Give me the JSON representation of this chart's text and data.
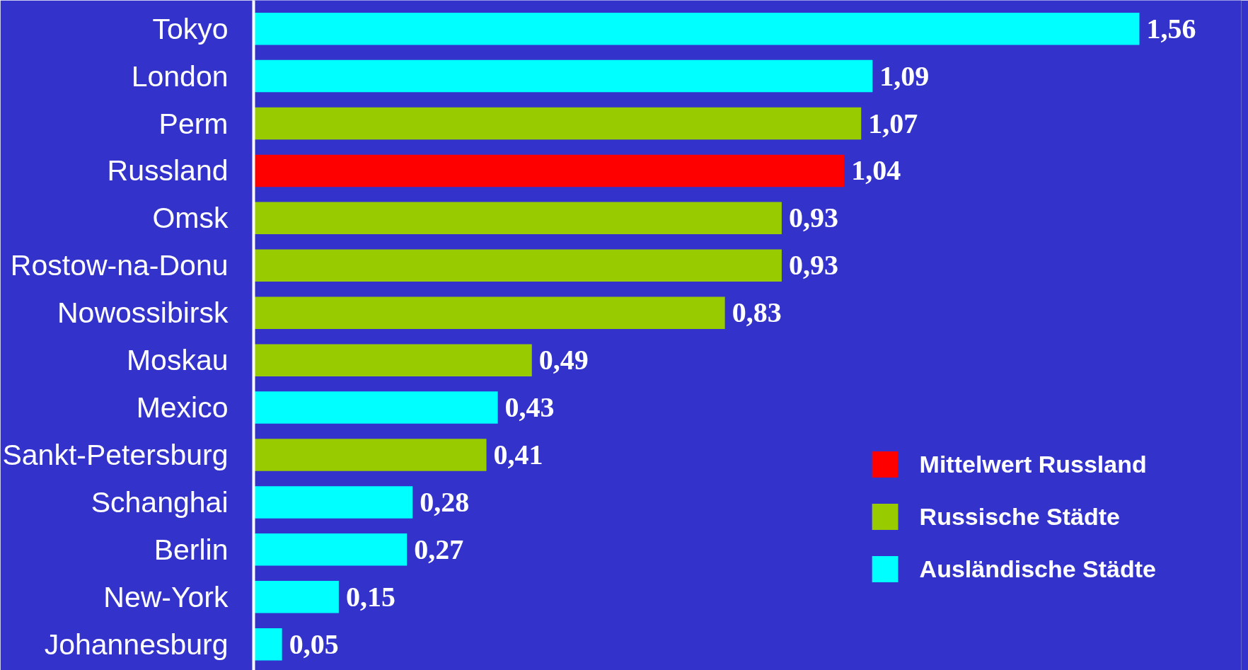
{
  "chart_data": {
    "type": "bar",
    "orientation": "horizontal",
    "categories": [
      "Tokyo",
      "London",
      "Perm",
      "Russland",
      "Omsk",
      "Rostow-na-Donu",
      "Nowossibirsk",
      "Moskau",
      "Mexico",
      "Sankt-Petersburg",
      "Schanghai",
      "Berlin",
      "New-York",
      "Johannesburg"
    ],
    "series": [
      {
        "name": "Mittelwert Russland",
        "color": "#ff0000",
        "values": [
          null,
          null,
          null,
          1.04,
          null,
          null,
          null,
          null,
          null,
          null,
          null,
          null,
          null,
          null
        ],
        "value_labels": [
          null,
          null,
          null,
          "1,04",
          null,
          null,
          null,
          null,
          null,
          null,
          null,
          null,
          null,
          null
        ]
      },
      {
        "name": "Russische Städte",
        "color": "#99cc00",
        "values": [
          null,
          null,
          1.07,
          null,
          0.93,
          0.93,
          0.83,
          0.49,
          null,
          0.41,
          null,
          null,
          null,
          null
        ],
        "value_labels": [
          null,
          null,
          "1,07",
          null,
          "0,93",
          "0,93",
          "0,83",
          "0,49",
          null,
          "0,41",
          null,
          null,
          null,
          null
        ]
      },
      {
        "name": "Ausländische Städte",
        "color": "#00ffff",
        "values": [
          1.56,
          1.09,
          null,
          null,
          null,
          null,
          null,
          null,
          0.43,
          null,
          0.28,
          0.27,
          0.15,
          0.05
        ],
        "value_labels": [
          "1,56",
          "1,09",
          null,
          null,
          null,
          null,
          null,
          null,
          "0,43",
          null,
          "0,28",
          "0,27",
          "0,15",
          "0,05"
        ]
      }
    ],
    "legend": "bottom right",
    "grid": false
  }
}
